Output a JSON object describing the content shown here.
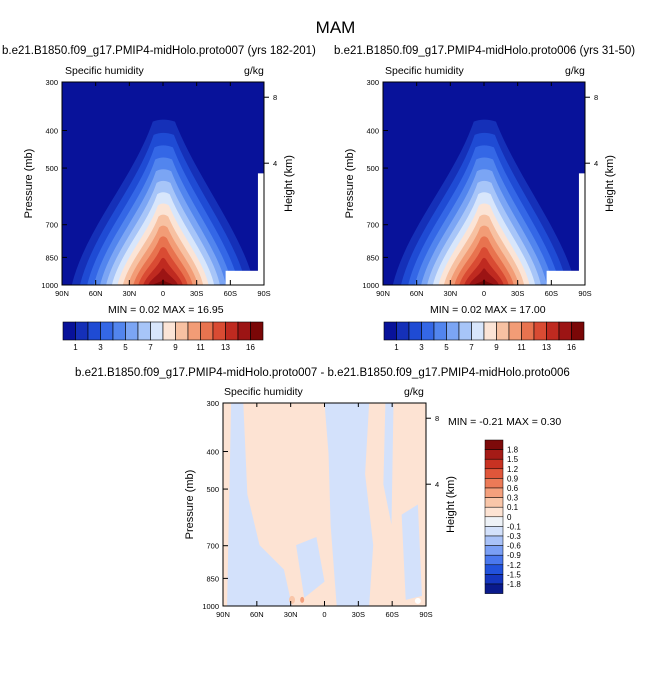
{
  "title": "MAM",
  "colors": {
    "abs_levels": [
      "#08129a",
      "#1530b8",
      "#1f4bd4",
      "#3467e6",
      "#5285ee",
      "#7ba5f4",
      "#a7c5f8",
      "#d8e6fb",
      "#fbe4d6",
      "#f7c1a2",
      "#f29c76",
      "#e8734f",
      "#d94b33",
      "#bf2a20",
      "#9c1414",
      "#7a0707"
    ],
    "diff_levels": [
      "#0a1a8c",
      "#1536bf",
      "#2252dc",
      "#4a78ee",
      "#7a9ff5",
      "#a9c2f8",
      "#d3e1fb",
      "#eef2f7",
      "#fde3d3",
      "#f9c6a9",
      "#f4a07d",
      "#ec7a57",
      "#e0563a",
      "#c83222",
      "#a51b16",
      "#7d0a0a"
    ]
  },
  "panels": [
    {
      "title": "b.e21.B1850.f09_g17.PMIP4-midHolo.proto007 (yrs 182-201)",
      "left_label": "Specific humidity",
      "right_label": "g/kg",
      "min_text": "MIN =  0.02   MAX =  16.95",
      "chart_data": {
        "type": "heatmap",
        "variable": "Specific humidity",
        "units": "g/kg",
        "x_ticks": [
          "90N",
          "60N",
          "30N",
          "0",
          "30S",
          "60S",
          "90S"
        ],
        "y_ticks": [
          "300",
          "400",
          "500",
          "700",
          "850",
          "1000"
        ],
        "height_ticks": [
          "8",
          "4"
        ],
        "ylabel": "Pressure (mb)",
        "ylabel_right": "Height (km)",
        "min": 0.02,
        "max": 16.95
      }
    },
    {
      "title": "b.e21.B1850.f09_g17.PMIP4-midHolo.proto006 (yrs 31-50)",
      "left_label": "Specific humidity",
      "right_label": "g/kg",
      "min_text": "MIN =  0.02   MAX =  17.00",
      "chart_data": {
        "type": "heatmap",
        "variable": "Specific humidity",
        "units": "g/kg",
        "x_ticks": [
          "90N",
          "60N",
          "30N",
          "0",
          "30S",
          "60S",
          "90S"
        ],
        "y_ticks": [
          "300",
          "400",
          "500",
          "700",
          "850",
          "1000"
        ],
        "height_ticks": [
          "8",
          "4"
        ],
        "ylabel": "Pressure (mb)",
        "ylabel_right": "Height (km)",
        "min": 0.02,
        "max": 17.0
      }
    }
  ],
  "abs_colorbar_labels": [
    "1",
    "3",
    "5",
    "7",
    "9",
    "11",
    "13",
    "16"
  ],
  "diff_panel": {
    "title": "b.e21.B1850.f09_g17.PMIP4-midHolo.proto007 - b.e21.B1850.f09_g17.PMIP4-midHolo.proto006",
    "left_label": "Specific humidity",
    "right_label": "g/kg",
    "min_text": "MIN =  -0.21   MAX =   0.30",
    "chart_data": {
      "type": "heatmap",
      "variable": "Specific humidity",
      "units": "g/kg",
      "x_ticks": [
        "90N",
        "60N",
        "30N",
        "0",
        "30S",
        "60S",
        "90S"
      ],
      "y_ticks": [
        "300",
        "400",
        "500",
        "700",
        "850",
        "1000"
      ],
      "height_ticks": [
        "8",
        "4"
      ],
      "ylabel": "Pressure (mb)",
      "ylabel_right": "Height (km)",
      "min": -0.21,
      "max": 0.3,
      "colorbar_labels": [
        "1.8",
        "1.5",
        "1.2",
        "0.9",
        "0.6",
        "0.3",
        "0.1",
        "0",
        "-0.1",
        "-0.3",
        "-0.6",
        "-0.9",
        "-1.2",
        "-1.5",
        "-1.8"
      ]
    }
  }
}
